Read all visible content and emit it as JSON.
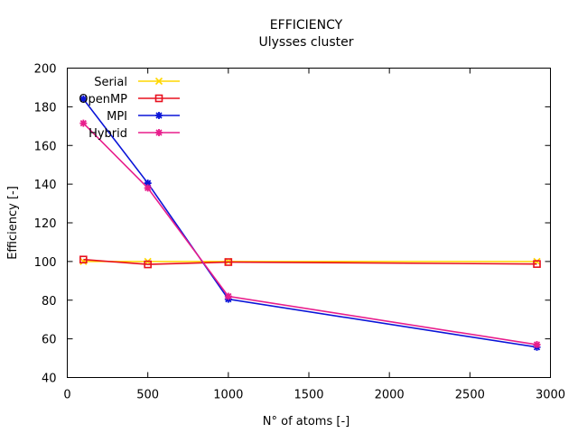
{
  "chart_data": {
    "type": "line",
    "title": "EFFICIENCY",
    "subtitle": "Ulysses cluster",
    "xlabel": "N° of atoms [-]",
    "ylabel": "Efficiency [-]",
    "xlim": [
      0,
      3000
    ],
    "ylim": [
      40,
      200
    ],
    "xticks": [
      0,
      500,
      1000,
      1500,
      2000,
      2500,
      3000
    ],
    "yticks": [
      40,
      60,
      80,
      100,
      120,
      140,
      160,
      180,
      200
    ],
    "grid": false,
    "legend_position": "top-left",
    "x": [
      100,
      500,
      1000,
      2916
    ],
    "series": [
      {
        "name": "Serial",
        "color": "#ffd700",
        "marker": "x",
        "values": [
          100,
          100,
          100,
          100
        ]
      },
      {
        "name": "OpenMP",
        "color": "#e8101e",
        "marker": "square",
        "values": [
          101,
          98.5,
          99.7,
          98.7
        ]
      },
      {
        "name": "MPI",
        "color": "#0a14d8",
        "marker": "star",
        "values": [
          184,
          140.5,
          80.5,
          55.7
        ]
      },
      {
        "name": "Hybrid",
        "color": "#e81e8c",
        "marker": "star",
        "values": [
          171.5,
          138,
          82,
          57
        ]
      }
    ]
  }
}
